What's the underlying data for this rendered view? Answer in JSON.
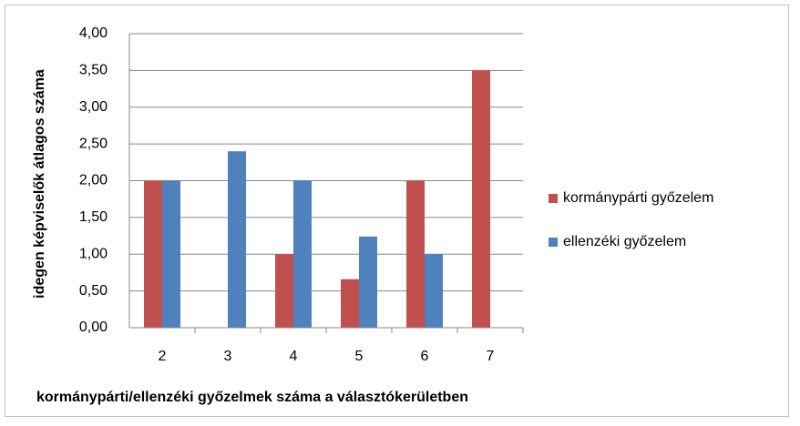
{
  "chart_data": {
    "type": "bar",
    "x_label": "kormánypárti/ellenzéki győzelmek száma a választókerületben",
    "y_label": "idegen képviselők átlagos száma",
    "categories": [
      "2",
      "3",
      "4",
      "5",
      "6",
      "7"
    ],
    "series": [
      {
        "name": "kormánypárti győzelem",
        "color": "#c0504d",
        "values": [
          2.0,
          null,
          1.0,
          0.66,
          2.0,
          3.5
        ]
      },
      {
        "name": "ellenzéki győzelem",
        "color": "#4f81bd",
        "values": [
          2.0,
          2.4,
          2.0,
          1.24,
          1.0,
          null
        ]
      }
    ],
    "ylim": [
      0,
      4
    ],
    "yticks": [
      {
        "value": 0,
        "label": "0,00"
      },
      {
        "value": 0.5,
        "label": "0,50"
      },
      {
        "value": 1,
        "label": "1,00"
      },
      {
        "value": 1.5,
        "label": "1,50"
      },
      {
        "value": 2,
        "label": "2,00"
      },
      {
        "value": 2.5,
        "label": "2,50"
      },
      {
        "value": 3,
        "label": "3,00"
      },
      {
        "value": 3.5,
        "label": "3,50"
      },
      {
        "value": 4,
        "label": "4,00"
      }
    ],
    "grid": true,
    "legend": "right"
  }
}
